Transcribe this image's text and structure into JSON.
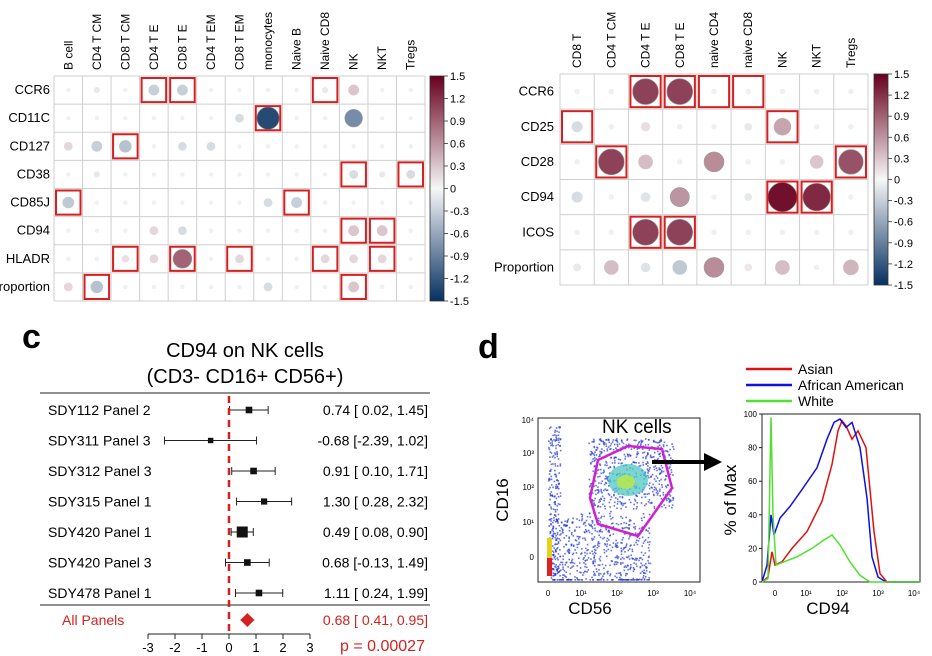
{
  "colors": {
    "strong_pos": "#8b1a1a",
    "strong_neg": "#1f3f7a",
    "highlight_box": "#d42020",
    "forest_ref_line": "#d42020",
    "summary": "#d42020",
    "asian": "#e01010",
    "african_american": "#1010e0",
    "white": "#50e030",
    "gate": "#d020d0"
  },
  "panel_c_label": "c",
  "panel_d_label": "d",
  "chart_data": [
    {
      "type": "heatmap",
      "id": "corr_left",
      "columns": [
        "B cell",
        "CD4 T CM",
        "CD8 T CM",
        "CD4 T E",
        "CD8 T E",
        "CD4 T EM",
        "CD8 T EM",
        "monocytes",
        "Naive B",
        "Naive CD8",
        "NK",
        "NKT",
        "Tregs"
      ],
      "rows": [
        "CCR6",
        "CD11C",
        "CD127",
        "CD38",
        "CD85J",
        "CD94",
        "HLADR",
        "Proportion"
      ],
      "values": [
        [
          0.05,
          -0.1,
          0.05,
          -0.3,
          -0.3,
          0.05,
          0.05,
          0.05,
          0.05,
          -0.1,
          0.3,
          0.05,
          0.05
        ],
        [
          0.05,
          -0.05,
          0.05,
          0.05,
          0.05,
          0.05,
          -0.2,
          -1.3,
          -0.05,
          0.05,
          -0.8,
          0.05,
          -0.05
        ],
        [
          0.2,
          -0.3,
          -0.4,
          0.05,
          -0.2,
          -0.2,
          0.05,
          0.05,
          0.05,
          0.05,
          0.05,
          0.05,
          -0.05
        ],
        [
          0.05,
          -0.1,
          0.05,
          0.05,
          0.05,
          0.05,
          0.05,
          0.05,
          0.05,
          0.05,
          -0.2,
          -0.1,
          -0.2
        ],
        [
          -0.35,
          0.05,
          0.05,
          0.05,
          0.05,
          0.05,
          0.05,
          -0.2,
          -0.3,
          0.05,
          0.05,
          0.05,
          0.05
        ],
        [
          0.05,
          0.05,
          0.05,
          0.2,
          -0.2,
          0.05,
          0.05,
          0.05,
          0.05,
          0.05,
          0.3,
          0.3,
          0.05
        ],
        [
          0.05,
          0.05,
          0.15,
          0.2,
          0.9,
          0.05,
          0.2,
          0.05,
          0.05,
          0.2,
          0.2,
          0.2,
          0.05
        ],
        [
          0.2,
          -0.4,
          -0.05,
          0.05,
          0.05,
          -0.05,
          0.05,
          -0.2,
          0.05,
          0.05,
          0.3,
          0.05,
          0.05
        ]
      ],
      "highlight": [
        [
          0,
          3
        ],
        [
          0,
          4
        ],
        [
          0,
          9
        ],
        [
          1,
          7
        ],
        [
          2,
          2
        ],
        [
          3,
          10
        ],
        [
          3,
          12
        ],
        [
          4,
          0
        ],
        [
          4,
          8
        ],
        [
          5,
          10
        ],
        [
          5,
          11
        ],
        [
          6,
          2
        ],
        [
          6,
          4
        ],
        [
          6,
          6
        ],
        [
          6,
          9
        ],
        [
          6,
          11
        ],
        [
          7,
          1
        ],
        [
          7,
          10
        ]
      ],
      "colorbar": {
        "min": -1.5,
        "max": 1.5,
        "ticks": [
          "1.5",
          "1.2",
          "0.9",
          "0.6",
          "0.3",
          "0",
          "-0.3",
          "-0.6",
          "-0.9",
          "-1.2",
          "-1.5"
        ]
      }
    },
    {
      "type": "heatmap",
      "id": "corr_right",
      "columns": [
        "CD8 T",
        "CD4 T CM",
        "CD4 T E",
        "CD8 T E",
        "naive CD4",
        "naive CD8",
        "NK",
        "NKT",
        "Tregs"
      ],
      "rows": [
        "CCR6",
        "CD25",
        "CD28",
        "CD94",
        "ICOS",
        "Proportion"
      ],
      "values": [
        [
          0.05,
          0.05,
          1.1,
          1.1,
          0.05,
          0.05,
          0.05,
          0.05,
          0.05
        ],
        [
          -0.2,
          0.05,
          0.15,
          0.05,
          0.05,
          -0.1,
          0.5,
          0.05,
          0.05
        ],
        [
          0.05,
          1.1,
          0.35,
          0.05,
          0.65,
          0.05,
          0.05,
          0.3,
          1.0
        ],
        [
          -0.2,
          0.05,
          -0.15,
          0.6,
          0.05,
          -0.1,
          1.4,
          1.25,
          0.05
        ],
        [
          0.05,
          0.05,
          1.1,
          1.1,
          0.05,
          0.05,
          0.05,
          0.05,
          0.05
        ],
        [
          -0.1,
          0.35,
          -0.15,
          -0.35,
          0.65,
          0.1,
          0.35,
          0.05,
          0.4
        ]
      ],
      "highlight": [
        [
          0,
          2
        ],
        [
          0,
          3
        ],
        [
          0,
          4
        ],
        [
          0,
          5
        ],
        [
          1,
          0
        ],
        [
          1,
          6
        ],
        [
          2,
          1
        ],
        [
          2,
          8
        ],
        [
          3,
          6
        ],
        [
          3,
          7
        ],
        [
          4,
          2
        ],
        [
          4,
          3
        ]
      ],
      "colorbar": {
        "min": -1.5,
        "max": 1.5,
        "ticks": [
          "1.5",
          "1.2",
          "0.9",
          "0.6",
          "0.3",
          "0",
          "-0.3",
          "-0.6",
          "-0.9",
          "-1.2",
          "-1.5"
        ]
      }
    },
    {
      "type": "forest",
      "id": "forest_c",
      "title": "CD94 on NK cells",
      "subtitle": "(CD3- CD16+ CD56+)",
      "studies": [
        "SDY112 Panel 2",
        "SDY311 Panel 3",
        "SDY312 Panel 3",
        "SDY315 Panel 1",
        "SDY420 Panel 1",
        "SDY420 Panel 3",
        "SDY478 Panel 1"
      ],
      "estimates": [
        0.74,
        -0.68,
        0.91,
        1.3,
        0.49,
        0.68,
        1.11
      ],
      "lower": [
        0.02,
        -2.39,
        0.1,
        0.28,
        0.08,
        -0.13,
        0.24
      ],
      "upper": [
        1.45,
        1.02,
        1.71,
        2.32,
        0.9,
        1.49,
        1.99
      ],
      "labels": [
        "0.74 [ 0.02, 1.45]",
        "-0.68 [-2.39, 1.02]",
        "0.91 [ 0.10, 1.71]",
        "1.30 [ 0.28, 2.32]",
        "0.49 [ 0.08, 0.90]",
        "0.68 [-0.13, 1.49]",
        "1.11 [ 0.24, 1.99]"
      ],
      "weights": [
        0.45,
        0.3,
        0.45,
        0.4,
        1.0,
        0.45,
        0.45
      ],
      "summary_label": "All Panels",
      "summary_estimate": 0.68,
      "summary_lower": 0.41,
      "summary_upper": 0.95,
      "summary_text": "0.68 [ 0.41, 0.95]",
      "xticks": [
        "-3",
        "-2",
        "-1",
        "0",
        "1",
        "2",
        "3"
      ],
      "xlim": [
        -3,
        3
      ],
      "pvalue": "p = 0.00027"
    },
    {
      "type": "scatter",
      "id": "facs_d",
      "xlabel": "CD56",
      "ylabel": "CD16",
      "gate_label": "NK cells",
      "xticks": [
        "0",
        "10¹",
        "10²",
        "10³",
        "10⁴"
      ],
      "yticks": [
        "0",
        "10¹",
        "10²",
        "10³",
        "10⁴"
      ]
    },
    {
      "type": "line",
      "id": "histogram_d",
      "xlabel": "CD94",
      "ylabel": "% of Max",
      "xticks": [
        "0",
        "10¹",
        "10²",
        "10³",
        "10⁴"
      ],
      "yticks": [
        "0",
        "20",
        "40",
        "60",
        "80",
        "100"
      ],
      "ylim": [
        0,
        100
      ],
      "legend": [
        "Asian",
        "African American",
        "White"
      ]
    }
  ]
}
